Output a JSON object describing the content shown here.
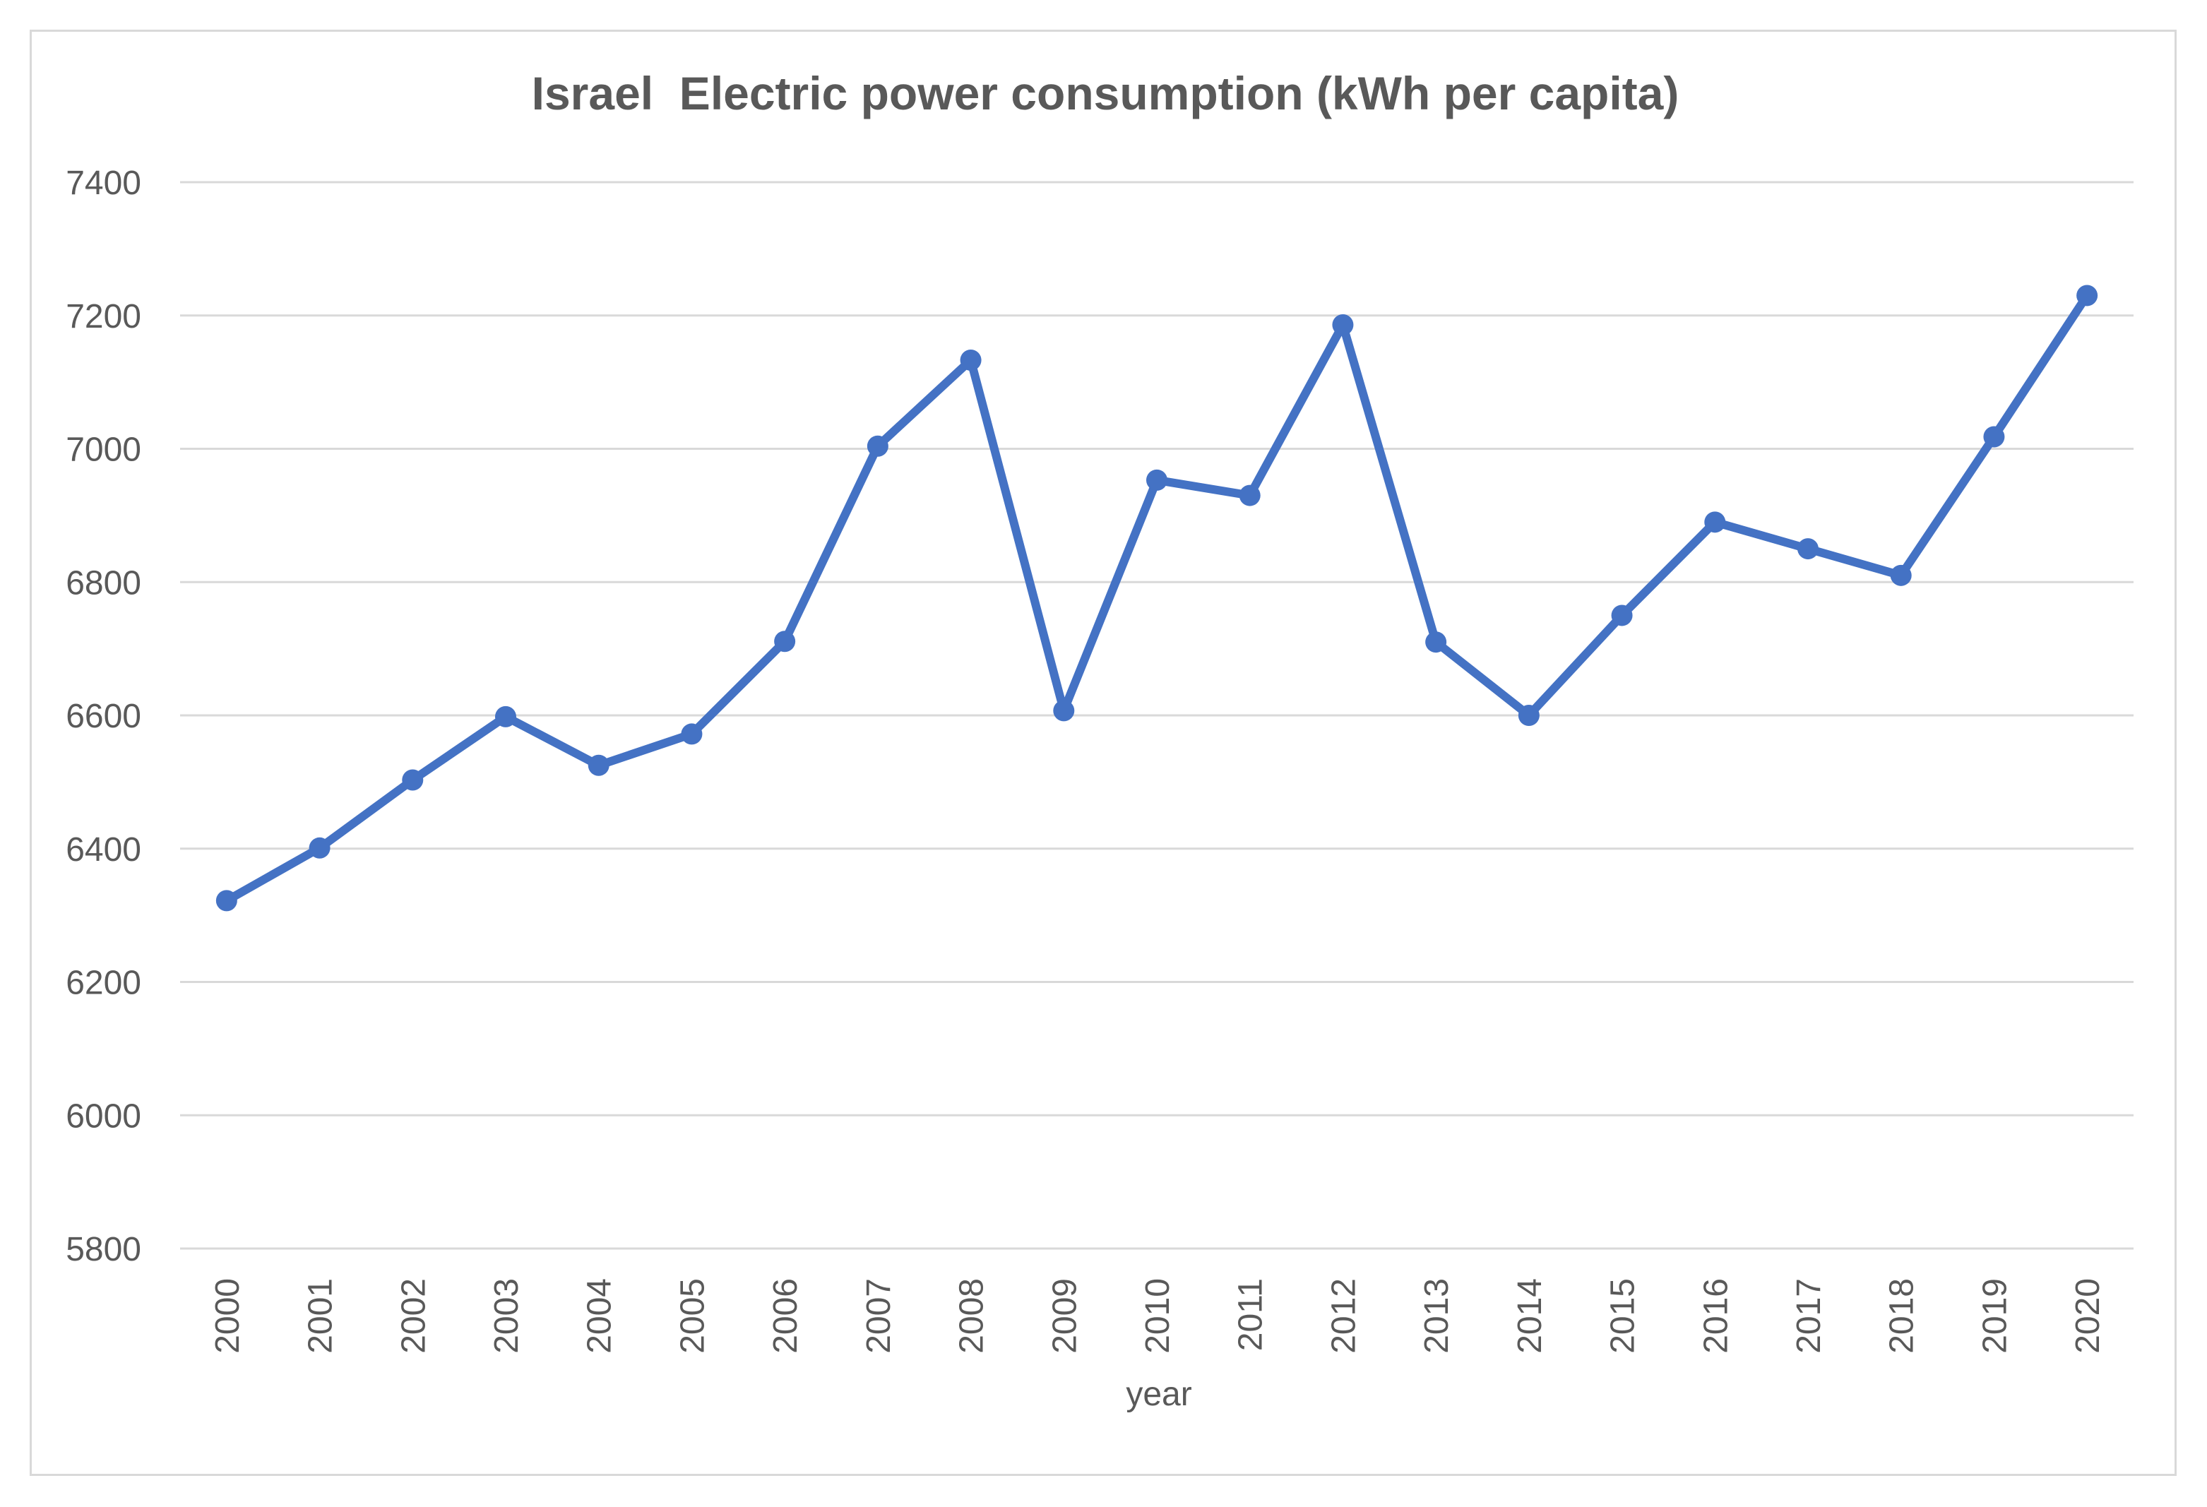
{
  "chart_data": {
    "type": "line",
    "title": "Israel  Electric power consumption (kWh per capita)",
    "xlabel": "year",
    "ylabel": "",
    "ylim": [
      5800,
      7400
    ],
    "yticks": [
      "5800",
      "6000",
      "6200",
      "6400",
      "6600",
      "6800",
      "7000",
      "7200",
      "7400"
    ],
    "categories": [
      "2000",
      "2001",
      "2002",
      "2003",
      "2004",
      "2005",
      "2006",
      "2007",
      "2008",
      "2009",
      "2010",
      "2011",
      "2012",
      "2013",
      "2014",
      "2015",
      "2016",
      "2017",
      "2018",
      "2019",
      "2020"
    ],
    "series": [
      {
        "color": "#4472c4",
        "values": [
          6322,
          6401,
          6503,
          6598,
          6525,
          6572,
          6711,
          7004,
          7133,
          6607,
          6953,
          6930,
          7186,
          6710,
          6600,
          6750,
          6890,
          6850,
          6810,
          7018,
          7230
        ]
      }
    ],
    "grid": true,
    "legend": "none"
  }
}
